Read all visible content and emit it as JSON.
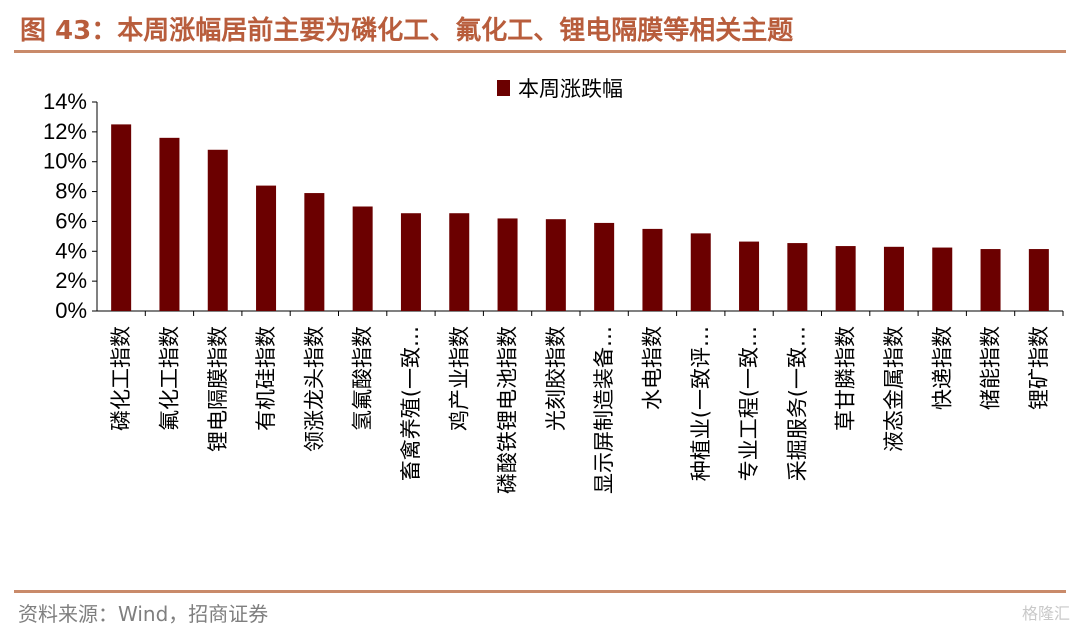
{
  "figure": {
    "title": "图 43：本周涨幅居前主要为磷化工、氟化工、锂电隔膜等相关主题",
    "source": "资料来源：Wind，招商证券",
    "watermark": "格隆汇"
  },
  "colors": {
    "bar": "#6b0000",
    "accent": "#b85d3c",
    "rule": "#c98a6a"
  },
  "chart_data": {
    "type": "bar",
    "categories": [
      "磷化工指数",
      "氟化工指数",
      "锂电隔膜指数",
      "有机硅指数",
      "领涨龙头指数",
      "氢氟酸指数",
      "畜禽养殖(一致…",
      "鸡产业指数",
      "磷酸铁锂电池指数",
      "光刻胶指数",
      "显示屏制造装备…",
      "水电指数",
      "种植业(一致评…",
      "专业工程(一致…",
      "采掘服务(一致…",
      "草甘膦指数",
      "液态金属指数",
      "快递指数",
      "储能指数",
      "锂矿指数"
    ],
    "series": [
      {
        "name": "本周涨跌幅",
        "values": [
          12.5,
          11.6,
          10.8,
          8.4,
          7.9,
          7.0,
          6.55,
          6.55,
          6.2,
          6.15,
          5.9,
          5.5,
          5.2,
          4.65,
          4.55,
          4.35,
          4.3,
          4.25,
          4.15,
          4.15
        ]
      }
    ],
    "yticks": [
      "0%",
      "2%",
      "4%",
      "6%",
      "8%",
      "10%",
      "12%",
      "14%"
    ],
    "ylim": [
      0,
      14
    ],
    "legend": "top-center",
    "grid": false
  }
}
